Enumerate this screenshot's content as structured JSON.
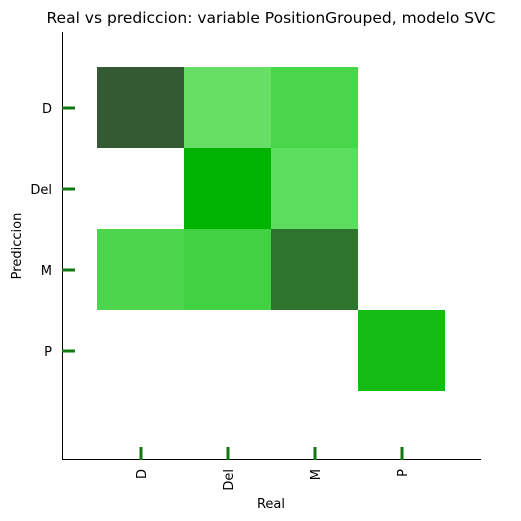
{
  "chart_data": {
    "type": "heatmap",
    "title": "Real vs prediccion: variable PositionGrouped, modelo SVC",
    "xlabel": "Real",
    "ylabel": "Prediccion",
    "x_categories": [
      "D",
      "Del",
      "M",
      "P"
    ],
    "y_categories": [
      "D",
      "Del",
      "M",
      "P"
    ],
    "cells": [
      {
        "x": "D",
        "y": "D",
        "color": "#335a33"
      },
      {
        "x": "Del",
        "y": "D",
        "color": "#67df67"
      },
      {
        "x": "M",
        "y": "D",
        "color": "#4ad64a"
      },
      {
        "x": "Del",
        "y": "Del",
        "color": "#00b300"
      },
      {
        "x": "M",
        "y": "Del",
        "color": "#5ddd5d"
      },
      {
        "x": "D",
        "y": "M",
        "color": "#4dd64d"
      },
      {
        "x": "Del",
        "y": "M",
        "color": "#42d142"
      },
      {
        "x": "M",
        "y": "M",
        "color": "#2e742e"
      },
      {
        "x": "P",
        "y": "P",
        "color": "#14bc14"
      }
    ],
    "tick_color": "#127812",
    "grid": false,
    "legend": "none"
  }
}
